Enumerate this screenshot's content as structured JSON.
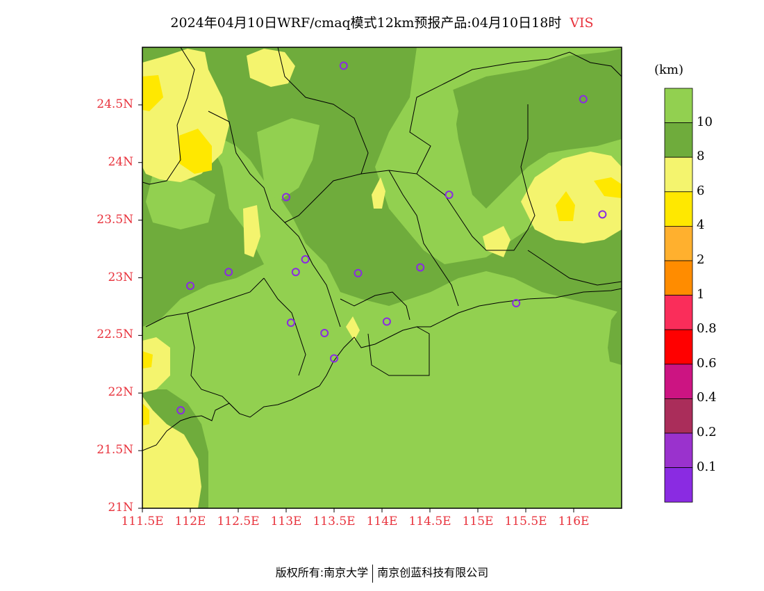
{
  "title": {
    "text": "2024年04月10日WRF/cmaq模式12km预报产品:04月10日18时",
    "variable": "VIS"
  },
  "map": {
    "lat_labels": [
      "24.5N",
      "24N",
      "23.5N",
      "23N",
      "22.5N",
      "22N",
      "21.5N",
      "21N"
    ],
    "lon_labels": [
      "111.5E",
      "112E",
      "112.5E",
      "113E",
      "113.5E",
      "114E",
      "114.5E",
      "115E",
      "115.5E",
      "116E"
    ],
    "lat_range": [
      21.0,
      25.0
    ],
    "lon_range": [
      111.5,
      116.5
    ],
    "station_markers": [
      {
        "lon": 113.6,
        "lat": 24.84
      },
      {
        "lon": 116.1,
        "lat": 24.55
      },
      {
        "lon": 113.0,
        "lat": 23.7
      },
      {
        "lon": 114.7,
        "lat": 23.72
      },
      {
        "lon": 116.3,
        "lat": 23.55
      },
      {
        "lon": 113.2,
        "lat": 23.16
      },
      {
        "lon": 112.4,
        "lat": 23.05
      },
      {
        "lon": 113.1,
        "lat": 23.05
      },
      {
        "lon": 113.75,
        "lat": 23.04
      },
      {
        "lon": 114.4,
        "lat": 23.09
      },
      {
        "lon": 112.0,
        "lat": 22.93
      },
      {
        "lon": 115.4,
        "lat": 22.78
      },
      {
        "lon": 113.05,
        "lat": 22.61
      },
      {
        "lon": 114.05,
        "lat": 22.62
      },
      {
        "lon": 113.4,
        "lat": 22.52
      },
      {
        "lon": 113.5,
        "lat": 22.3
      },
      {
        "lon": 111.9,
        "lat": 21.85
      }
    ]
  },
  "colorbar": {
    "unit": "(km)",
    "levels": [
      "10",
      "8",
      "6",
      "4",
      "2",
      "1",
      "0.8",
      "0.6",
      "0.4",
      "0.2",
      "0.1"
    ],
    "colors": [
      "#92d050",
      "#6fac3c",
      "#f4f46e",
      "#ffe800",
      "#ffb02e",
      "#ff8c00",
      "#fa2d5a",
      "#ff0000",
      "#cc1482",
      "#aa2d5a",
      "#9a32cd",
      "#8a2be2"
    ]
  },
  "footer": {
    "left": "版权所有:南京大学",
    "right": "南京创蓝科技有限公司"
  }
}
